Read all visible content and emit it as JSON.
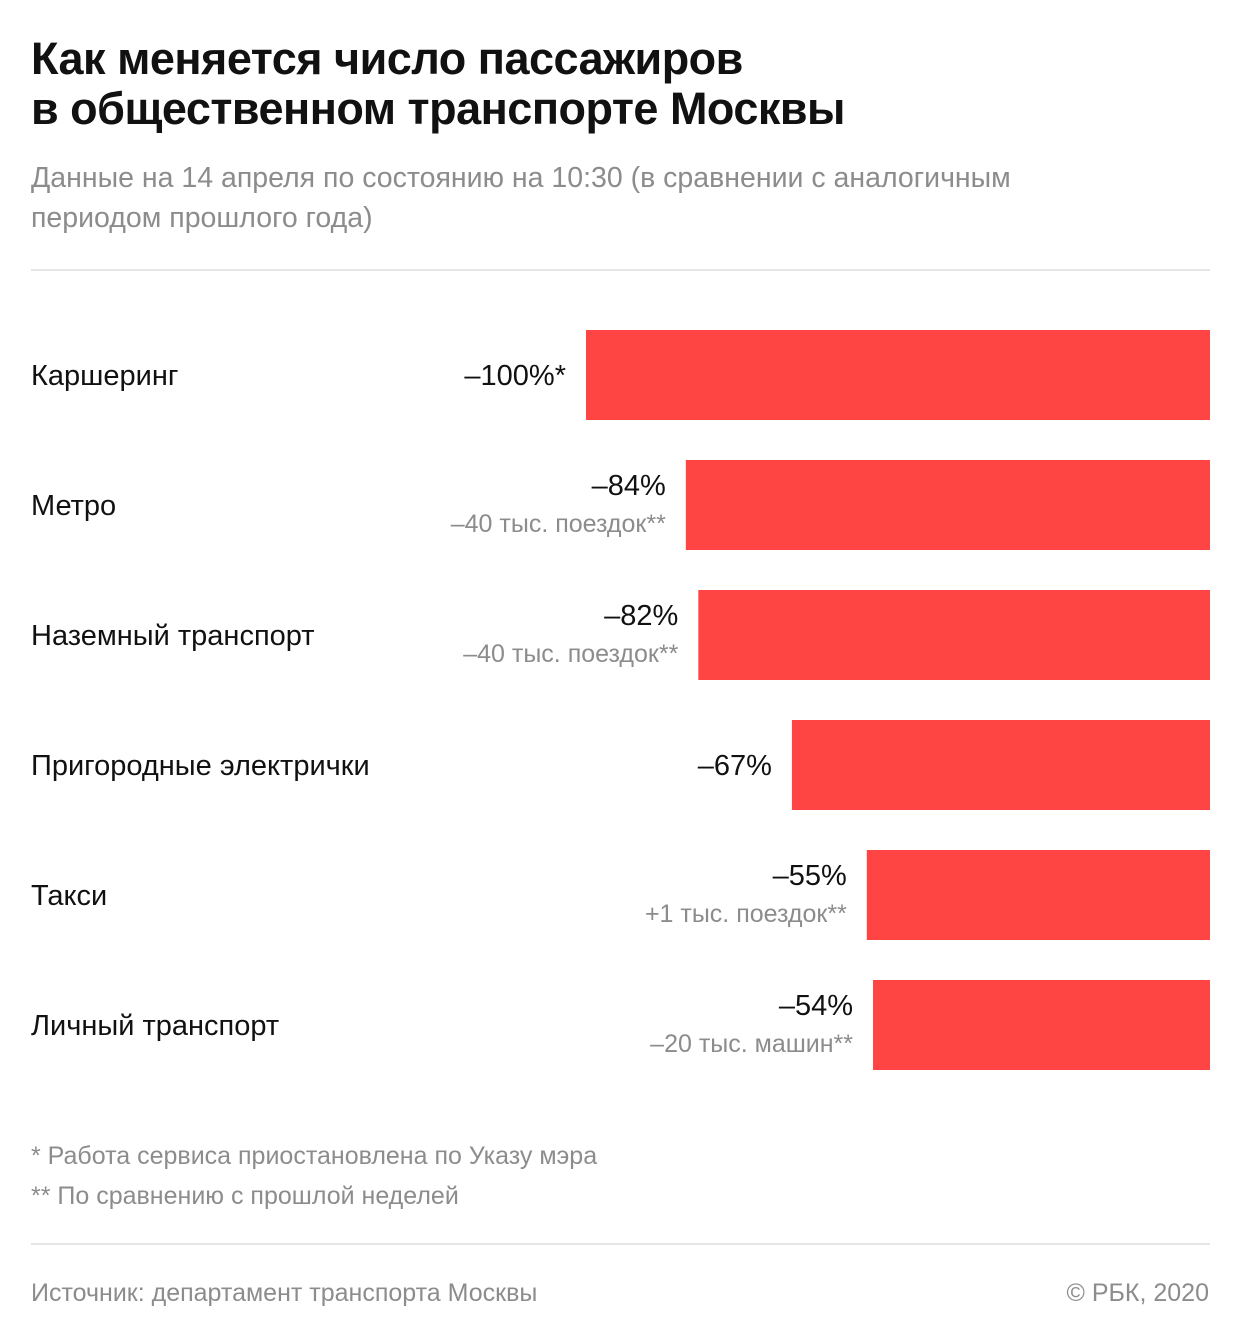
{
  "header": {
    "title_line1": "Как меняется число пассажиров",
    "title_line2": "в общественном транспорте Москвы",
    "subtitle_line1": "Данные на 14 апреля по состоянию на 10:30 (в сравнении с аналогичным",
    "subtitle_line2": "периодом прошлого года)"
  },
  "colors": {
    "bar": "#ff4444",
    "label": "#111111",
    "value": "#111111",
    "sublabel": "#8c8c8c"
  },
  "chart_data": {
    "type": "bar",
    "orientation": "horizontal",
    "title": "Как меняется число пассажиров в общественном транспорте Москвы",
    "subtitle": "Данные на 14 апреля по состоянию на 10:30 (в сравнении с аналогичным периодом прошлого года)",
    "xlabel": "",
    "ylabel": "",
    "xlim": [
      0,
      100
    ],
    "unit": "%",
    "grid": false,
    "categories": [
      "Каршеринг",
      "Метро",
      "Наземный транспорт",
      "Пригородные электрички",
      "Такси",
      "Личный транспорт"
    ],
    "values": [
      -100,
      -84,
      -82,
      -67,
      -55,
      -54
    ],
    "value_labels": [
      "–100%*",
      "–84%",
      "–82%",
      "–67%",
      "–55%",
      "–54%"
    ],
    "secondary_labels": [
      "",
      "–40 тыс. поездок**",
      "–40 тыс. поездок**",
      "",
      "+1 тыс. поездок**",
      "–20 тыс. машин**"
    ]
  },
  "footnotes": [
    "* Работа сервиса приостановлена по Указу мэра",
    "** По сравнению с прошлой неделей"
  ],
  "footer": {
    "source": "Источник: департамент транспорта Москвы",
    "copyright": "© РБК, 2020"
  }
}
